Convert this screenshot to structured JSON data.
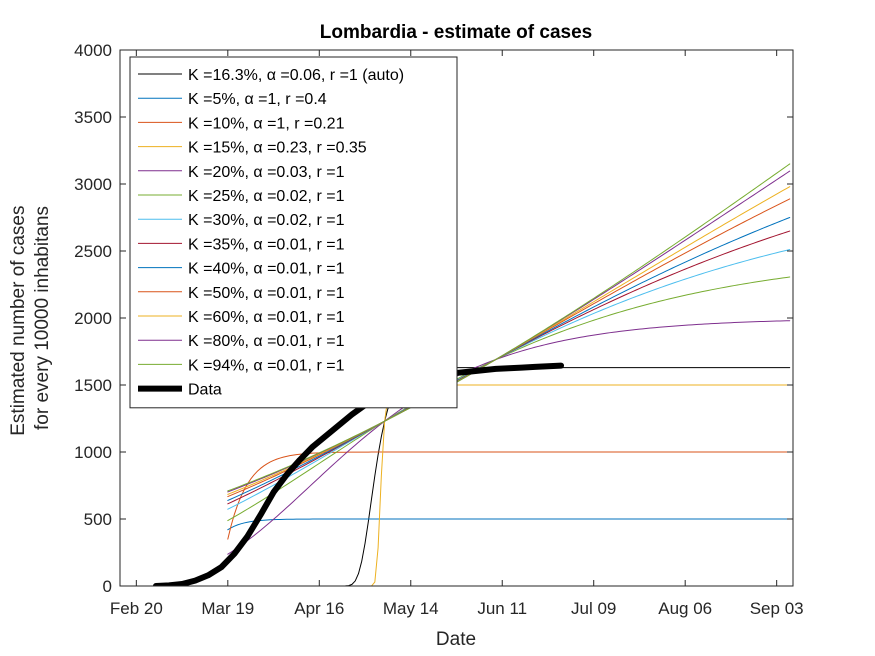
{
  "chart_data": {
    "type": "line",
    "title": "Lombardia - estimate of cases",
    "xlabel": "Date",
    "ylabel": [
      "Estimated number of cases",
      "for every 10000 inhabitans"
    ],
    "xlim": [
      -5,
      201
    ],
    "ylim": [
      0,
      4000
    ],
    "x_ticks": [
      {
        "day": 0,
        "label": "Feb 20"
      },
      {
        "day": 28,
        "label": "Mar 19"
      },
      {
        "day": 56,
        "label": "Apr 16"
      },
      {
        "day": 84,
        "label": "May 14"
      },
      {
        "day": 112,
        "label": "Jun 11"
      },
      {
        "day": 140,
        "label": "Jul 09"
      },
      {
        "day": 168,
        "label": "Aug 06"
      },
      {
        "day": 196,
        "label": "Sep 03"
      }
    ],
    "y_ticks": [
      0,
      500,
      1000,
      1500,
      2000,
      2500,
      3000,
      3500,
      4000
    ],
    "grid": false,
    "legend_position": "top-left",
    "x_unit_note": "days since Feb 20",
    "series": [
      {
        "name": "K =16.3%, α =0.06, r =1 (auto)",
        "color": "#000000",
        "width": 1,
        "K": 1630,
        "alpha": 0.06
      },
      {
        "name": "K =5%, α =1, r =0.4",
        "color": "#0072BD",
        "width": 1,
        "K": 500,
        "alpha": 1
      },
      {
        "name": "K =10%, α =1, r =0.21",
        "color": "#D95319",
        "width": 1,
        "K": 1000,
        "alpha": 1
      },
      {
        "name": "K =15%, α =0.23, r =0.35",
        "color": "#EDB120",
        "width": 1,
        "K": 1500,
        "alpha": 0.23
      },
      {
        "name": "K =20%, α =0.03, r =1",
        "color": "#7E2F8E",
        "width": 1,
        "K": 2000,
        "alpha": 0.03
      },
      {
        "name": "K =25%, α =0.02, r =1",
        "color": "#77AC30",
        "width": 1,
        "K": 2500,
        "alpha": 0.02
      },
      {
        "name": "K =30%, α =0.02, r =1",
        "color": "#4DBEEE",
        "width": 1,
        "K": 3000,
        "alpha": 0.02
      },
      {
        "name": "K =35%, α =0.01, r =1",
        "color": "#A2142F",
        "width": 1,
        "K": 3500,
        "alpha": 0.01
      },
      {
        "name": "K =40%, α =0.01, r =1",
        "color": "#0072BD",
        "width": 1,
        "K": 4000,
        "alpha": 0.01
      },
      {
        "name": "K =50%, α =0.01, r =1",
        "color": "#D95319",
        "width": 1,
        "K": 5000,
        "alpha": 0.01
      },
      {
        "name": "K =60%, α =0.01, r =1",
        "color": "#EDB120",
        "width": 1,
        "K": 6000,
        "alpha": 0.01
      },
      {
        "name": "K =80%, α =0.01, r =1",
        "color": "#7E2F8E",
        "width": 1,
        "K": 8000,
        "alpha": 0.01
      },
      {
        "name": "K =94%, α =0.01, r =1",
        "color": "#77AC30",
        "width": 1,
        "K": 9400,
        "alpha": 0.01
      },
      {
        "name": "Data",
        "color": "#000000",
        "width": 6,
        "points": [
          [
            6,
            0
          ],
          [
            10,
            5
          ],
          [
            14,
            15
          ],
          [
            18,
            40
          ],
          [
            22,
            80
          ],
          [
            26,
            140
          ],
          [
            30,
            240
          ],
          [
            34,
            370
          ],
          [
            38,
            530
          ],
          [
            42,
            700
          ],
          [
            46,
            830
          ],
          [
            50,
            940
          ],
          [
            54,
            1040
          ],
          [
            58,
            1120
          ],
          [
            62,
            1200
          ],
          [
            66,
            1280
          ],
          [
            70,
            1350
          ],
          [
            74,
            1410
          ],
          [
            78,
            1460
          ],
          [
            82,
            1500
          ],
          [
            86,
            1530
          ],
          [
            90,
            1560
          ],
          [
            94,
            1580
          ],
          [
            98,
            1590
          ],
          [
            102,
            1600
          ],
          [
            106,
            1610
          ],
          [
            110,
            1620
          ],
          [
            114,
            1625
          ],
          [
            118,
            1630
          ],
          [
            122,
            1635
          ],
          [
            126,
            1640
          ],
          [
            130,
            1645
          ]
        ]
      }
    ],
    "model": {
      "x_start": 28,
      "x_end": 200,
      "anchor_day": 76,
      "anchor_value": 1230,
      "convergence_day": 110,
      "convergence_value": 1690,
      "fit_slope": 13.5
    }
  }
}
